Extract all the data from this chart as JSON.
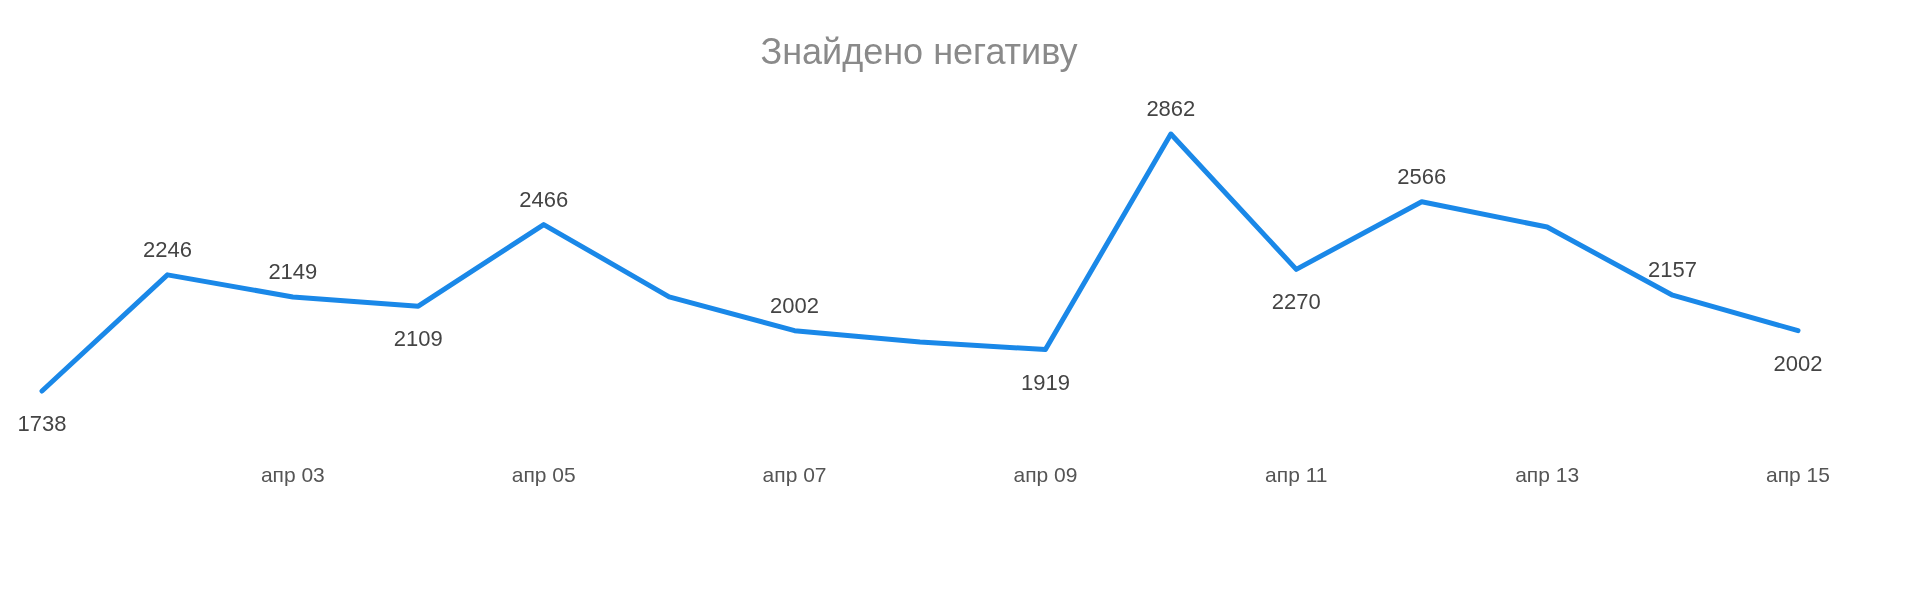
{
  "chart_data": {
    "type": "line",
    "title": "Знайдено негативу",
    "categories": [
      null,
      null,
      "апр 03",
      null,
      "апр 05",
      null,
      "апр 07",
      null,
      "апр 09",
      null,
      "апр 11",
      null,
      "апр 13",
      null,
      "апр 15"
    ],
    "series": [
      {
        "color": "#1a88e8",
        "values": [
          1738,
          2246,
          2149,
          2109,
          2466,
          2150,
          2002,
          1952,
          1919,
          2862,
          2270,
          2566,
          2455,
          2157,
          2002
        ],
        "value_labels": [
          "1738",
          "2246",
          "2149",
          "2109",
          "2466",
          null,
          "2002",
          null,
          "1919",
          "2862",
          "2270",
          "2566",
          null,
          "2157",
          "2002"
        ]
      }
    ],
    "tick_labels": "x",
    "grid": false,
    "marker": "none",
    "line_style": "solid"
  }
}
